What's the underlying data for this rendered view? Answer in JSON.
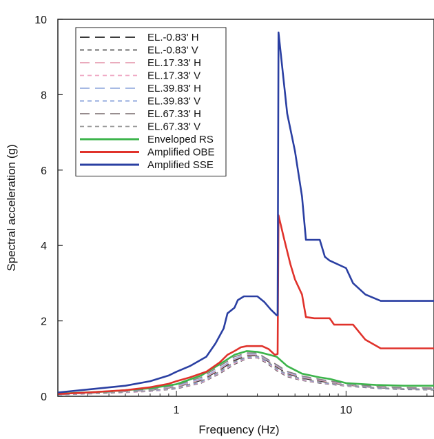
{
  "chart_data": {
    "type": "line",
    "title": "",
    "xlabel": "Frequency (Hz)",
    "ylabel": "Spectral acceleration (g)",
    "xscale": "log",
    "xlim": [
      0.2,
      33
    ],
    "ylim": [
      0,
      10
    ],
    "x_ticks": [
      {
        "value": 1,
        "label": "1"
      },
      {
        "value": 10,
        "label": "10"
      }
    ],
    "y_ticks": [
      {
        "value": 0,
        "label": "0"
      },
      {
        "value": 2,
        "label": "2"
      },
      {
        "value": 4,
        "label": "4"
      },
      {
        "value": 6,
        "label": "6"
      },
      {
        "value": 8,
        "label": "8"
      },
      {
        "value": 10,
        "label": "10"
      }
    ],
    "grid": false,
    "legend_position": "top-left",
    "series": [
      {
        "name": "EL.-0.83' H",
        "color": "#222222",
        "dash": "long-dash",
        "x": [
          0.2,
          0.4,
          0.7,
          1.0,
          1.4,
          1.8,
          2.2,
          2.6,
          3.0,
          3.4,
          3.9,
          4.5,
          5.5,
          7,
          10,
          15,
          22,
          33
        ],
        "y": [
          0.05,
          0.1,
          0.16,
          0.25,
          0.42,
          0.7,
          0.95,
          1.08,
          1.08,
          0.95,
          0.78,
          0.6,
          0.48,
          0.4,
          0.3,
          0.23,
          0.2,
          0.19
        ]
      },
      {
        "name": "EL.-0.83' V",
        "color": "#555555",
        "dash": "short-dash",
        "x": [
          0.2,
          0.4,
          0.7,
          1.0,
          1.4,
          1.8,
          2.2,
          2.6,
          3.0,
          3.4,
          3.9,
          4.5,
          5.5,
          7,
          10,
          15,
          22,
          33
        ],
        "y": [
          0.04,
          0.08,
          0.13,
          0.2,
          0.35,
          0.6,
          0.85,
          1.0,
          1.02,
          0.88,
          0.68,
          0.52,
          0.42,
          0.35,
          0.27,
          0.21,
          0.18,
          0.17
        ]
      },
      {
        "name": "EL.17.33' H",
        "color": "#e8a0b4",
        "dash": "long-dash",
        "x": [
          0.2,
          0.4,
          0.7,
          1.0,
          1.4,
          1.8,
          2.2,
          2.6,
          3.0,
          3.4,
          3.9,
          4.5,
          5.5,
          7,
          10,
          15,
          22,
          33
        ],
        "y": [
          0.05,
          0.1,
          0.17,
          0.26,
          0.44,
          0.72,
          0.98,
          1.1,
          1.1,
          0.97,
          0.8,
          0.62,
          0.5,
          0.42,
          0.31,
          0.24,
          0.21,
          0.2
        ]
      },
      {
        "name": "EL.17.33' V",
        "color": "#f0a8c4",
        "dash": "short-dash",
        "x": [
          0.2,
          0.4,
          0.7,
          1.0,
          1.4,
          1.8,
          2.2,
          2.6,
          3.0,
          3.4,
          3.9,
          4.5,
          5.5,
          7,
          10,
          15,
          22,
          33
        ],
        "y": [
          0.04,
          0.08,
          0.13,
          0.21,
          0.36,
          0.62,
          0.87,
          1.01,
          1.03,
          0.9,
          0.7,
          0.54,
          0.43,
          0.36,
          0.28,
          0.22,
          0.19,
          0.18
        ]
      },
      {
        "name": "EL.39.83' H",
        "color": "#9bb0e0",
        "dash": "long-dash",
        "x": [
          0.2,
          0.4,
          0.7,
          1.0,
          1.4,
          1.8,
          2.2,
          2.6,
          3.0,
          3.4,
          3.9,
          4.5,
          5.5,
          7,
          10,
          15,
          22,
          33
        ],
        "y": [
          0.06,
          0.11,
          0.18,
          0.28,
          0.46,
          0.75,
          1.0,
          1.12,
          1.12,
          0.98,
          0.82,
          0.64,
          0.52,
          0.44,
          0.33,
          0.25,
          0.22,
          0.21
        ]
      },
      {
        "name": "EL.39.83' V",
        "color": "#7f9ad8",
        "dash": "short-dash",
        "x": [
          0.2,
          0.4,
          0.7,
          1.0,
          1.4,
          1.8,
          2.2,
          2.6,
          3.0,
          3.4,
          3.9,
          4.5,
          5.5,
          7,
          10,
          15,
          22,
          33
        ],
        "y": [
          0.04,
          0.09,
          0.14,
          0.22,
          0.38,
          0.64,
          0.9,
          1.03,
          1.05,
          0.92,
          0.72,
          0.56,
          0.45,
          0.37,
          0.29,
          0.22,
          0.19,
          0.18
        ]
      },
      {
        "name": "EL.67.33' H",
        "color": "#8a7e80",
        "dash": "long-dash",
        "x": [
          0.2,
          0.4,
          0.7,
          1.0,
          1.4,
          1.8,
          2.2,
          2.6,
          3.0,
          3.4,
          3.9,
          4.5,
          5.5,
          7,
          10,
          15,
          22,
          33
        ],
        "y": [
          0.06,
          0.12,
          0.19,
          0.3,
          0.5,
          0.8,
          1.05,
          1.15,
          1.15,
          1.0,
          0.84,
          0.66,
          0.54,
          0.45,
          0.34,
          0.26,
          0.23,
          0.22
        ]
      },
      {
        "name": "EL.67.33' V",
        "color": "#999999",
        "dash": "short-dash",
        "x": [
          0.2,
          0.4,
          0.7,
          1.0,
          1.4,
          1.8,
          2.2,
          2.6,
          3.0,
          3.4,
          3.9,
          4.5,
          5.5,
          7,
          10,
          15,
          22,
          33
        ],
        "y": [
          0.05,
          0.09,
          0.15,
          0.23,
          0.4,
          0.66,
          0.92,
          1.05,
          1.07,
          0.94,
          0.74,
          0.58,
          0.46,
          0.38,
          0.3,
          0.23,
          0.2,
          0.19
        ]
      },
      {
        "name": "Enveloped RS",
        "color": "#3cb44b",
        "dash": "solid",
        "x": [
          0.2,
          0.4,
          0.7,
          1.0,
          1.4,
          1.8,
          2.2,
          2.6,
          3.0,
          3.4,
          3.9,
          4.5,
          5.5,
          7,
          8,
          10,
          15,
          22,
          33
        ],
        "y": [
          0.07,
          0.13,
          0.21,
          0.32,
          0.55,
          0.85,
          1.1,
          1.2,
          1.18,
          1.12,
          1.05,
          0.8,
          0.6,
          0.5,
          0.46,
          0.35,
          0.3,
          0.28,
          0.28
        ]
      },
      {
        "name": "Amplified OBE",
        "color": "#e0322b",
        "dash": "solid",
        "x": [
          0.2,
          0.3,
          0.5,
          0.7,
          0.9,
          1.0,
          1.2,
          1.5,
          1.8,
          2.0,
          2.2,
          2.4,
          2.6,
          3.0,
          3.2,
          3.5,
          3.8,
          3.95,
          4.0,
          4.3,
          4.7,
          5.0,
          5.5,
          5.8,
          6.5,
          8,
          8.5,
          11,
          13,
          16,
          33
        ],
        "y": [
          0.06,
          0.1,
          0.16,
          0.24,
          0.33,
          0.4,
          0.5,
          0.65,
          0.9,
          1.1,
          1.2,
          1.3,
          1.33,
          1.33,
          1.33,
          1.25,
          1.1,
          1.12,
          4.8,
          4.2,
          3.5,
          3.1,
          2.7,
          2.1,
          2.07,
          2.07,
          1.9,
          1.9,
          1.5,
          1.27,
          1.27
        ]
      },
      {
        "name": "Amplified SSE",
        "color": "#2a3fa2",
        "dash": "solid",
        "x": [
          0.2,
          0.3,
          0.5,
          0.7,
          0.9,
          1.0,
          1.2,
          1.5,
          1.7,
          1.9,
          2.0,
          2.2,
          2.3,
          2.5,
          3.0,
          3.3,
          3.6,
          3.9,
          3.95,
          4.0,
          4.5,
          5.0,
          5.5,
          5.8,
          7.0,
          7.5,
          8,
          10,
          11,
          13,
          16,
          33
        ],
        "y": [
          0.1,
          0.18,
          0.28,
          0.4,
          0.55,
          0.65,
          0.8,
          1.05,
          1.4,
          1.8,
          2.2,
          2.35,
          2.55,
          2.65,
          2.65,
          2.5,
          2.3,
          2.15,
          2.15,
          9.65,
          7.5,
          6.5,
          5.3,
          4.15,
          4.15,
          3.7,
          3.6,
          3.4,
          3.0,
          2.7,
          2.53,
          2.53
        ]
      }
    ]
  }
}
